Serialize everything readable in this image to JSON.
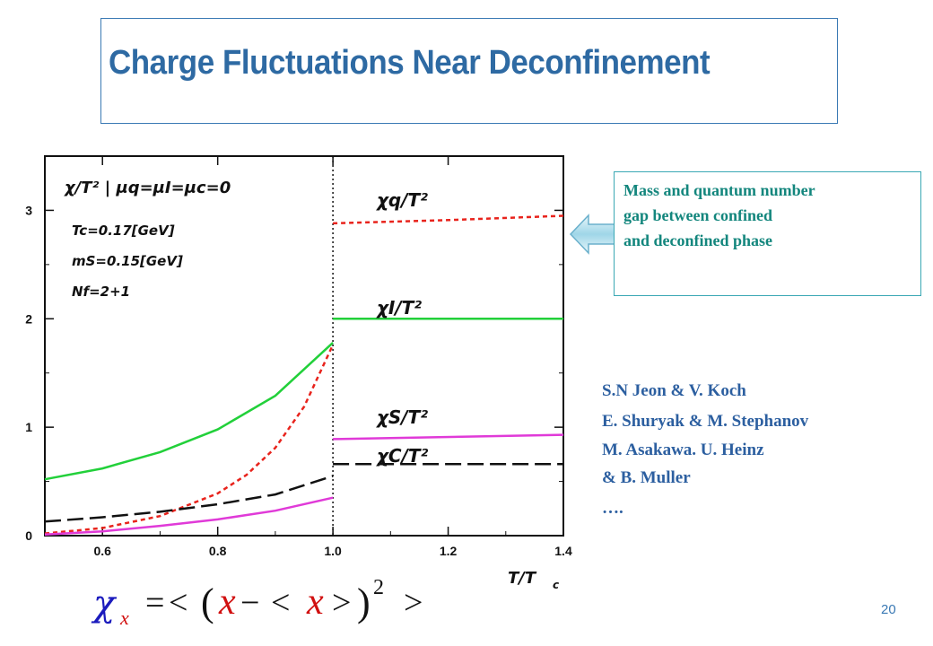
{
  "slide": {
    "title": "Charge Fluctuations Near Deconfinement",
    "page_number": "20"
  },
  "callout": {
    "lines": [
      "Mass and quantum number",
      "gap between confined",
      "and deconfined phase"
    ]
  },
  "references": [
    "S.N Jeon &  V. Koch",
    "E. Shuryak & M. Stephanov",
    " M. Asakawa. U. Heinz",
    " & B. Muller",
    "…."
  ],
  "formula": {
    "chi": "χ",
    "sub": "x",
    "eq": "=",
    "lt1": "<",
    "lp": "(",
    "x1": "x",
    "minus": "−",
    "lt2": "<",
    "x2": "x",
    "gt1": ">",
    "rp": ")",
    "sq": "2",
    "gt2": ">"
  },
  "chart_data": {
    "type": "line",
    "xlabel": "T/T",
    "xlabel_sub": "c",
    "xlim": [
      0.5,
      1.4
    ],
    "ylim": [
      0,
      3.5
    ],
    "x_ticks": [
      0.6,
      0.8,
      1.0,
      1.2,
      1.4
    ],
    "x_tick_labels": [
      "0.6",
      "0.8",
      "1.0",
      "1.2",
      "1.4"
    ],
    "y_ticks": [
      0,
      1,
      2,
      3
    ],
    "y_tick_labels": [
      "0",
      "1",
      "2",
      "3"
    ],
    "critical_line_x": 1.0,
    "annotations": {
      "header": "χ/T² | μq=μI=μc=0",
      "tc": "Tc=0.17[GeV]",
      "ms": "mS=0.15[GeV]",
      "nf": "Nf=2+1"
    },
    "series": [
      {
        "name": "χq/T²",
        "color": "#e8231c",
        "dash": "5,4",
        "points": [
          [
            0.5,
            0.02
          ],
          [
            0.6,
            0.07
          ],
          [
            0.7,
            0.18
          ],
          [
            0.8,
            0.39
          ],
          [
            0.85,
            0.56
          ],
          [
            0.9,
            0.81
          ],
          [
            0.95,
            1.19
          ],
          [
            1.0,
            1.76
          ],
          [
            1.0,
            2.88
          ],
          [
            1.2,
            2.91
          ],
          [
            1.4,
            2.95
          ]
        ]
      },
      {
        "name": "χI/T²",
        "color": "#22d03a",
        "dash": "",
        "points": [
          [
            0.5,
            0.52
          ],
          [
            0.6,
            0.62
          ],
          [
            0.7,
            0.77
          ],
          [
            0.8,
            0.98
          ],
          [
            0.9,
            1.29
          ],
          [
            1.0,
            1.78
          ],
          [
            1.0,
            2.0
          ],
          [
            1.4,
            2.0
          ]
        ]
      },
      {
        "name": "χS/T²",
        "color": "#e03ad8",
        "dash": "",
        "points": [
          [
            0.5,
            0.01
          ],
          [
            0.6,
            0.04
          ],
          [
            0.7,
            0.09
          ],
          [
            0.8,
            0.15
          ],
          [
            0.9,
            0.23
          ],
          [
            1.0,
            0.35
          ],
          [
            1.0,
            0.89
          ],
          [
            1.4,
            0.93
          ]
        ]
      },
      {
        "name": "χC/T²",
        "color": "#111111",
        "dash": "18,7",
        "points": [
          [
            0.5,
            0.13
          ],
          [
            0.6,
            0.17
          ],
          [
            0.7,
            0.22
          ],
          [
            0.8,
            0.29
          ],
          [
            0.9,
            0.38
          ],
          [
            1.0,
            0.55
          ],
          [
            1.0,
            0.66
          ],
          [
            1.4,
            0.66
          ]
        ]
      }
    ]
  }
}
